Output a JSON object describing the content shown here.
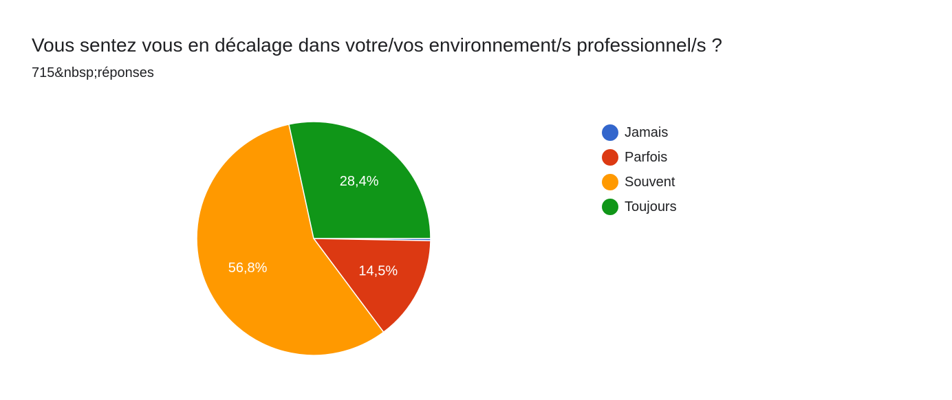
{
  "title": "Vous sentez vous en décalage dans votre/vos environnement/s professionnel/s ?",
  "subtitle": "715&nbsp;réponses",
  "chart_data": {
    "type": "pie",
    "title": "Vous sentez vous en décalage dans votre/vos environnement/s professionnel/s ?",
    "legend_position": "right",
    "slices": [
      {
        "label": "Jamais",
        "value": 0.3,
        "display_label": "",
        "color": "#3366cc"
      },
      {
        "label": "Parfois",
        "value": 14.5,
        "display_label": "14,5%",
        "color": "#dc3912"
      },
      {
        "label": "Souvent",
        "value": 56.8,
        "display_label": "56,8%",
        "color": "#ff9900"
      },
      {
        "label": "Toujours",
        "value": 28.4,
        "display_label": "28,4%",
        "color": "#109618"
      }
    ]
  }
}
